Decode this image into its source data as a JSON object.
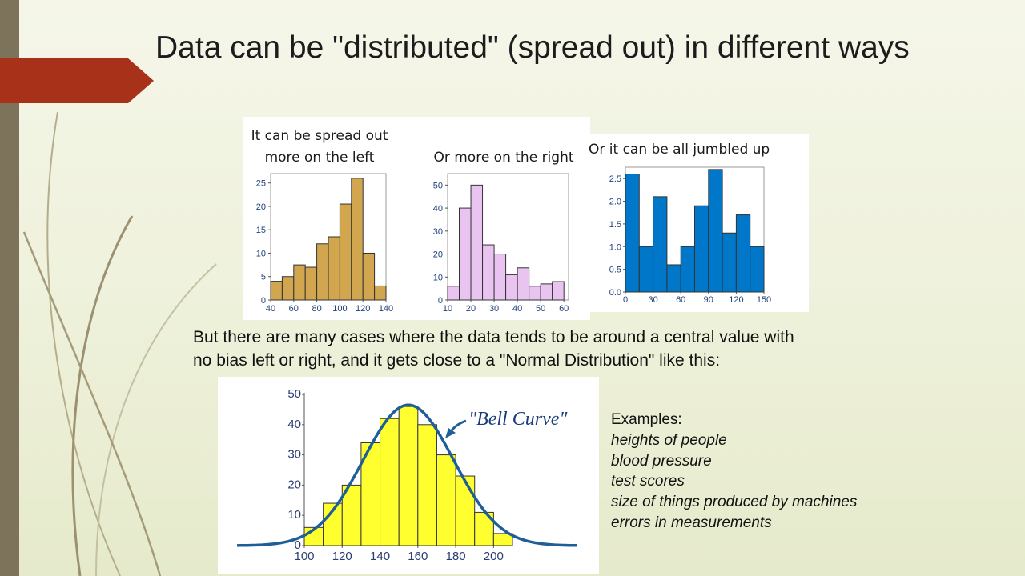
{
  "slide": {
    "title": "Data can be \"distributed\" (spread out) in different ways",
    "body_line1": "But there are many cases where the data tends to be around a central value with",
    "body_line2": "no bias left or right, and it gets close to a \"Normal Distribution\" like this:",
    "examples_title": "Examples:",
    "examples": [
      "heights of people",
      "blood pressure",
      "test scores",
      "size of things produced by machines",
      "errors in measurements"
    ]
  },
  "colors": {
    "left_skew": "#d2a64f",
    "right_skew": "#eac4f0",
    "jumbled": "#0077c8",
    "bell_bars": "#ffff30",
    "bell_curve": "#1d5f96",
    "accent_tab": "#a8311a",
    "side_bar": "#7d725a"
  },
  "chart_data": [
    {
      "type": "bar",
      "caption": [
        "It can be spread out",
        "more on the left"
      ],
      "xlim": [
        40,
        140
      ],
      "ylim": [
        0,
        27
      ],
      "xticks": [
        40,
        60,
        80,
        100,
        120,
        140
      ],
      "yticks": [
        0,
        5,
        10,
        15,
        20,
        25
      ],
      "bin_start": 40,
      "bin_width": 10,
      "values": [
        4,
        5,
        7.5,
        7,
        12,
        13.5,
        20.5,
        26,
        10,
        3
      ]
    },
    {
      "type": "bar",
      "caption": [
        "Or more on the right"
      ],
      "xlim": [
        10,
        62
      ],
      "ylim": [
        0,
        55
      ],
      "xticks": [
        10,
        20,
        30,
        40,
        50,
        60
      ],
      "yticks": [
        0,
        10,
        20,
        30,
        40,
        50
      ],
      "bin_start": 10,
      "bin_width": 5,
      "values": [
        6,
        40,
        50,
        24,
        20,
        11,
        14,
        6,
        7,
        8
      ]
    },
    {
      "type": "bar",
      "caption": [
        "Or it can be all jumbled up"
      ],
      "xlim": [
        0,
        150
      ],
      "ylim": [
        0,
        2.75
      ],
      "xticks": [
        0,
        30,
        60,
        90,
        120,
        150
      ],
      "ytick_labels": [
        "0.0",
        "0.5",
        "1.0",
        "1.5",
        "2.0",
        "2.5"
      ],
      "yticks": [
        0,
        0.5,
        1,
        1.5,
        2,
        2.5
      ],
      "bin_start": 0,
      "bin_width": 15,
      "values": [
        2.6,
        1.0,
        2.1,
        0.6,
        1.0,
        1.9,
        2.7,
        1.3,
        1.7,
        1.0
      ]
    },
    {
      "type": "bar",
      "annotation": "\"Bell Curve\"",
      "xlim": [
        100,
        210
      ],
      "ylim": [
        0,
        50
      ],
      "xticks": [
        100,
        120,
        140,
        160,
        180,
        200
      ],
      "yticks": [
        0,
        10,
        20,
        30,
        40,
        50
      ],
      "bin_start": 100,
      "bin_width": 10,
      "values": [
        6,
        14,
        20,
        34,
        42,
        46,
        40,
        30,
        23,
        11,
        4
      ],
      "curve": {
        "mean": 155,
        "sd": 24,
        "peak": 46.5
      }
    }
  ]
}
